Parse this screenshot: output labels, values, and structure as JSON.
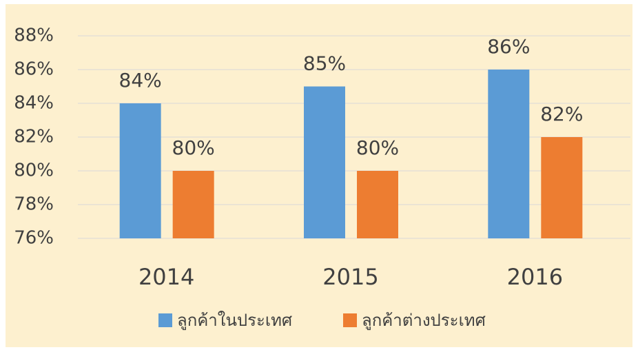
{
  "chart_data": {
    "type": "bar",
    "categories": [
      "2014",
      "2015",
      "2016"
    ],
    "series": [
      {
        "name": "ลูกค้าในประเทศ",
        "color": "#5b9bd5",
        "values": [
          84,
          85,
          86
        ],
        "value_labels": [
          "84%",
          "85%",
          "86%"
        ]
      },
      {
        "name": "ลูกค้าต่างประเทศ",
        "color": "#ed7d31",
        "values": [
          80,
          80,
          82
        ],
        "value_labels": [
          "80%",
          "80%",
          "82%"
        ]
      }
    ],
    "ylim": [
      76,
      88
    ],
    "yticks": [
      {
        "value": 76,
        "label": "76%"
      },
      {
        "value": 78,
        "label": "78%"
      },
      {
        "value": 80,
        "label": "80%"
      },
      {
        "value": 82,
        "label": "82%"
      },
      {
        "value": 84,
        "label": "84%"
      },
      {
        "value": 86,
        "label": "86%"
      },
      {
        "value": 88,
        "label": "88%"
      }
    ],
    "grid": true,
    "legend": "bottom"
  }
}
